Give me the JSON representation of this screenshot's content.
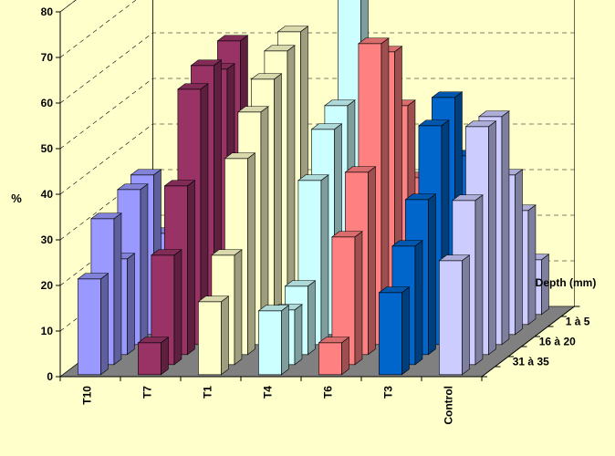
{
  "chart_data": {
    "type": "bar",
    "variant": "3d-clustered-depth",
    "title": "",
    "ylabel": "%",
    "zlabel": "Depth (mm)",
    "ylim": [
      0,
      80
    ],
    "yticks": [
      "0",
      "10",
      "20",
      "30",
      "40",
      "50",
      "60",
      "70",
      "80"
    ],
    "categories": [
      "T10",
      "T7",
      "T1",
      "T4",
      "T6",
      "T3",
      "Control"
    ],
    "depth_labels_shown": [
      "1 à 5",
      "16 à 20",
      "31 à 35"
    ],
    "depth_series_count": 7,
    "series_colors": {
      "T10": "#9999ff",
      "T7": "#993366",
      "T1": "#ffffcc",
      "T4": "#ccffff",
      "T6": "#ff8080",
      "T3": "#0066cc",
      "Control": "#ccccff"
    },
    "values": {
      "T10": [
        21,
        32,
        21,
        34,
        35,
        20,
        10
      ],
      "T7": [
        7,
        24,
        37,
        56,
        59,
        56,
        60
      ],
      "T1": [
        16,
        24,
        43,
        51,
        56,
        60,
        62
      ],
      "T4": [
        14,
        12,
        15,
        36,
        45,
        48,
        75
      ],
      "T6": [
        7,
        28,
        40,
        66,
        62,
        48,
        30
      ],
      "T3": [
        18,
        26,
        34,
        48,
        52,
        37,
        20
      ],
      "Control": [
        25,
        36,
        50,
        50,
        35,
        25,
        12
      ]
    },
    "grid": true,
    "background": "#ffffcc",
    "floor_color": "#808080"
  }
}
